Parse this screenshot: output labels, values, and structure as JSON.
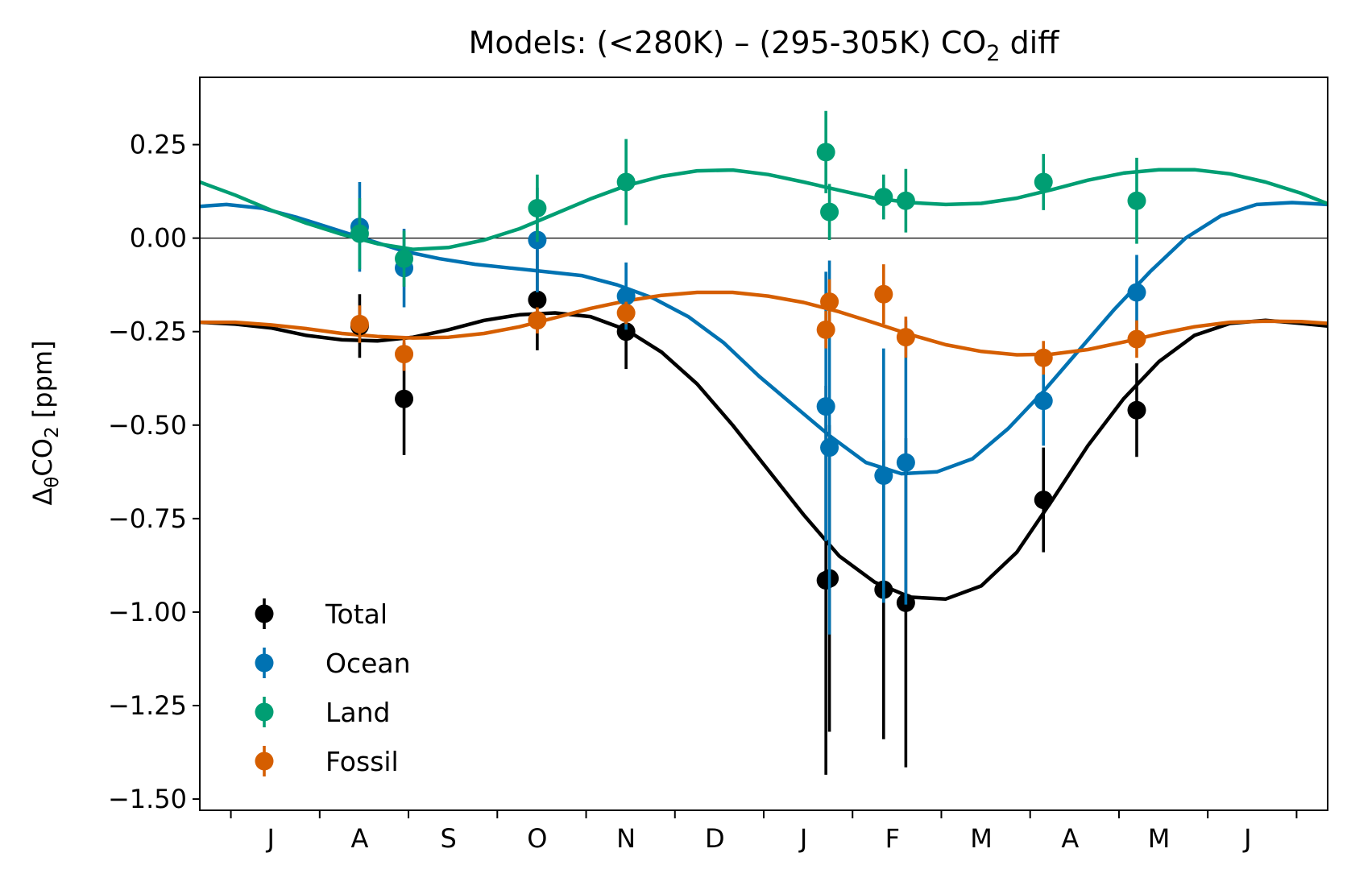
{
  "chart_data": {
    "type": "scatter",
    "title_main": "Models: (<280K) – (295-305K) CO",
    "title_sub": "2",
    "title_tail": " diff",
    "ylabel_main": "Δ",
    "ylabel_theta": "θ",
    "ylabel_co": "CO",
    "ylabel_sub": "2",
    "ylabel_unit": " [ppm]",
    "xlabel": "",
    "ylim": [
      -1.53,
      0.43
    ],
    "xlim": [
      0.0,
      12.7
    ],
    "yticks": [
      {
        "value": 0.25,
        "label": "0.25"
      },
      {
        "value": 0.0,
        "label": "0.00"
      },
      {
        "value": -0.25,
        "label": "−0.25"
      },
      {
        "value": -0.5,
        "label": "−0.50"
      },
      {
        "value": -0.75,
        "label": "−0.75"
      },
      {
        "value": -1.0,
        "label": "−1.00"
      },
      {
        "value": -1.25,
        "label": "−1.25"
      },
      {
        "value": -1.5,
        "label": "−1.50"
      }
    ],
    "xticks": [
      0.35,
      1.35,
      2.35,
      3.35,
      4.35,
      5.35,
      6.35,
      7.35,
      8.35,
      9.35,
      10.35,
      11.35,
      12.35
    ],
    "xticklabels": [
      {
        "x": 0.8,
        "label": "J"
      },
      {
        "x": 1.8,
        "label": "A"
      },
      {
        "x": 2.8,
        "label": "S"
      },
      {
        "x": 3.8,
        "label": "O"
      },
      {
        "x": 4.8,
        "label": "N"
      },
      {
        "x": 5.8,
        "label": "D"
      },
      {
        "x": 6.8,
        "label": "J"
      },
      {
        "x": 7.8,
        "label": "F"
      },
      {
        "x": 8.8,
        "label": "M"
      },
      {
        "x": 9.8,
        "label": "A"
      },
      {
        "x": 10.8,
        "label": "M"
      },
      {
        "x": 11.8,
        "label": "J"
      }
    ],
    "zero_line": true,
    "legend_position": "lower-left",
    "series": [
      {
        "name": "Total",
        "color": "#000000",
        "points": [
          {
            "x": 1.8,
            "y": -0.235,
            "err": 0.085
          },
          {
            "x": 2.3,
            "y": -0.43,
            "err": 0.15
          },
          {
            "x": 3.8,
            "y": -0.165,
            "err": 0.135
          },
          {
            "x": 4.8,
            "y": -0.25,
            "err": 0.1
          },
          {
            "x": 7.05,
            "y": -0.915,
            "err": 0.52
          },
          {
            "x": 7.09,
            "y": -0.91,
            "err": 0.41
          },
          {
            "x": 7.7,
            "y": -0.94,
            "err": 0.4
          },
          {
            "x": 7.95,
            "y": -0.975,
            "err": 0.44
          },
          {
            "x": 9.5,
            "y": -0.7,
            "err": 0.14
          },
          {
            "x": 10.55,
            "y": -0.46,
            "err": 0.125
          }
        ],
        "fit": [
          [
            0.0,
            -0.225
          ],
          [
            0.4,
            -0.23
          ],
          [
            0.8,
            -0.24
          ],
          [
            1.2,
            -0.26
          ],
          [
            1.6,
            -0.272
          ],
          [
            2.0,
            -0.275
          ],
          [
            2.4,
            -0.265
          ],
          [
            2.8,
            -0.245
          ],
          [
            3.2,
            -0.22
          ],
          [
            3.6,
            -0.205
          ],
          [
            4.0,
            -0.2
          ],
          [
            4.4,
            -0.21
          ],
          [
            4.8,
            -0.245
          ],
          [
            5.2,
            -0.305
          ],
          [
            5.6,
            -0.39
          ],
          [
            6.0,
            -0.5
          ],
          [
            6.4,
            -0.62
          ],
          [
            6.8,
            -0.74
          ],
          [
            7.2,
            -0.85
          ],
          [
            7.6,
            -0.92
          ],
          [
            8.0,
            -0.96
          ],
          [
            8.4,
            -0.965
          ],
          [
            8.8,
            -0.93
          ],
          [
            9.2,
            -0.84
          ],
          [
            9.6,
            -0.7
          ],
          [
            10.0,
            -0.555
          ],
          [
            10.4,
            -0.43
          ],
          [
            10.8,
            -0.33
          ],
          [
            11.2,
            -0.26
          ],
          [
            11.6,
            -0.228
          ],
          [
            12.0,
            -0.22
          ],
          [
            12.4,
            -0.228
          ],
          [
            12.7,
            -0.235
          ]
        ]
      },
      {
        "name": "Ocean",
        "color": "#0072b2",
        "points": [
          {
            "x": 1.8,
            "y": 0.03,
            "err": 0.12
          },
          {
            "x": 2.3,
            "y": -0.08,
            "err": 0.105
          },
          {
            "x": 3.8,
            "y": -0.005,
            "err": 0.14
          },
          {
            "x": 4.8,
            "y": -0.155,
            "err": 0.09
          },
          {
            "x": 7.05,
            "y": -0.45,
            "err": 0.36
          },
          {
            "x": 7.09,
            "y": -0.56,
            "err": 0.5
          },
          {
            "x": 7.7,
            "y": -0.635,
            "err": 0.34
          },
          {
            "x": 7.95,
            "y": -0.6,
            "err": 0.38
          },
          {
            "x": 9.5,
            "y": -0.435,
            "err": 0.12
          },
          {
            "x": 10.55,
            "y": -0.145,
            "err": 0.1
          }
        ],
        "fit": [
          [
            0.0,
            0.085
          ],
          [
            0.3,
            0.09
          ],
          [
            0.7,
            0.08
          ],
          [
            1.1,
            0.055
          ],
          [
            1.5,
            0.025
          ],
          [
            1.9,
            -0.005
          ],
          [
            2.3,
            -0.035
          ],
          [
            2.7,
            -0.055
          ],
          [
            3.1,
            -0.07
          ],
          [
            3.5,
            -0.08
          ],
          [
            3.9,
            -0.09
          ],
          [
            4.3,
            -0.1
          ],
          [
            4.7,
            -0.125
          ],
          [
            5.1,
            -0.16
          ],
          [
            5.5,
            -0.21
          ],
          [
            5.9,
            -0.28
          ],
          [
            6.3,
            -0.37
          ],
          [
            6.7,
            -0.45
          ],
          [
            7.1,
            -0.53
          ],
          [
            7.5,
            -0.6
          ],
          [
            7.9,
            -0.63
          ],
          [
            8.3,
            -0.625
          ],
          [
            8.7,
            -0.59
          ],
          [
            9.1,
            -0.51
          ],
          [
            9.5,
            -0.41
          ],
          [
            9.9,
            -0.3
          ],
          [
            10.3,
            -0.19
          ],
          [
            10.7,
            -0.09
          ],
          [
            11.1,
            0.0
          ],
          [
            11.5,
            0.06
          ],
          [
            11.9,
            0.09
          ],
          [
            12.3,
            0.095
          ],
          [
            12.7,
            0.09
          ]
        ]
      },
      {
        "name": "Land",
        "color": "#009e73",
        "points": [
          {
            "x": 1.8,
            "y": 0.012,
            "err": 0.095
          },
          {
            "x": 2.3,
            "y": -0.055,
            "err": 0.075
          },
          {
            "x": 3.8,
            "y": 0.08,
            "err": 0.09
          },
          {
            "x": 4.8,
            "y": 0.15,
            "err": 0.115
          },
          {
            "x": 7.05,
            "y": 0.23,
            "err": 0.11
          },
          {
            "x": 7.09,
            "y": 0.07,
            "err": 0.075
          },
          {
            "x": 7.7,
            "y": 0.11,
            "err": 0.06
          },
          {
            "x": 7.95,
            "y": 0.1,
            "err": 0.085
          },
          {
            "x": 9.5,
            "y": 0.15,
            "err": 0.075
          },
          {
            "x": 10.55,
            "y": 0.1,
            "err": 0.115
          }
        ],
        "fit": [
          [
            0.0,
            0.15
          ],
          [
            0.4,
            0.115
          ],
          [
            0.8,
            0.075
          ],
          [
            1.2,
            0.04
          ],
          [
            1.6,
            0.01
          ],
          [
            2.0,
            -0.015
          ],
          [
            2.4,
            -0.03
          ],
          [
            2.8,
            -0.025
          ],
          [
            3.2,
            -0.005
          ],
          [
            3.6,
            0.025
          ],
          [
            4.0,
            0.065
          ],
          [
            4.4,
            0.105
          ],
          [
            4.8,
            0.14
          ],
          [
            5.2,
            0.165
          ],
          [
            5.6,
            0.18
          ],
          [
            6.0,
            0.182
          ],
          [
            6.4,
            0.17
          ],
          [
            6.8,
            0.15
          ],
          [
            7.2,
            0.128
          ],
          [
            7.6,
            0.107
          ],
          [
            8.0,
            0.095
          ],
          [
            8.4,
            0.09
          ],
          [
            8.8,
            0.093
          ],
          [
            9.2,
            0.107
          ],
          [
            9.6,
            0.13
          ],
          [
            10.0,
            0.155
          ],
          [
            10.4,
            0.174
          ],
          [
            10.8,
            0.183
          ],
          [
            11.2,
            0.183
          ],
          [
            11.6,
            0.172
          ],
          [
            12.0,
            0.15
          ],
          [
            12.4,
            0.12
          ],
          [
            12.7,
            0.092
          ]
        ]
      },
      {
        "name": "Fossil",
        "color": "#d55e00",
        "points": [
          {
            "x": 1.8,
            "y": -0.23,
            "err": 0.05
          },
          {
            "x": 2.3,
            "y": -0.31,
            "err": 0.045
          },
          {
            "x": 3.8,
            "y": -0.22,
            "err": 0.035
          },
          {
            "x": 4.8,
            "y": -0.2,
            "err": 0.03
          },
          {
            "x": 7.05,
            "y": -0.245,
            "err": 0.05
          },
          {
            "x": 7.09,
            "y": -0.17,
            "err": 0.06
          },
          {
            "x": 7.7,
            "y": -0.15,
            "err": 0.08
          },
          {
            "x": 7.95,
            "y": -0.265,
            "err": 0.055
          },
          {
            "x": 9.5,
            "y": -0.32,
            "err": 0.045
          },
          {
            "x": 10.55,
            "y": -0.27,
            "err": 0.05
          }
        ],
        "fit": [
          [
            0.0,
            -0.225
          ],
          [
            0.4,
            -0.225
          ],
          [
            0.8,
            -0.232
          ],
          [
            1.2,
            -0.242
          ],
          [
            1.6,
            -0.255
          ],
          [
            2.0,
            -0.263
          ],
          [
            2.4,
            -0.267
          ],
          [
            2.8,
            -0.265
          ],
          [
            3.2,
            -0.255
          ],
          [
            3.6,
            -0.237
          ],
          [
            4.0,
            -0.213
          ],
          [
            4.4,
            -0.188
          ],
          [
            4.8,
            -0.168
          ],
          [
            5.2,
            -0.153
          ],
          [
            5.6,
            -0.145
          ],
          [
            6.0,
            -0.145
          ],
          [
            6.4,
            -0.155
          ],
          [
            6.8,
            -0.172
          ],
          [
            7.2,
            -0.197
          ],
          [
            7.6,
            -0.227
          ],
          [
            8.0,
            -0.258
          ],
          [
            8.4,
            -0.285
          ],
          [
            8.8,
            -0.303
          ],
          [
            9.2,
            -0.312
          ],
          [
            9.6,
            -0.31
          ],
          [
            10.0,
            -0.298
          ],
          [
            10.4,
            -0.278
          ],
          [
            10.8,
            -0.256
          ],
          [
            11.2,
            -0.237
          ],
          [
            11.6,
            -0.225
          ],
          [
            12.0,
            -0.222
          ],
          [
            12.4,
            -0.223
          ],
          [
            12.7,
            -0.228
          ]
        ]
      }
    ]
  }
}
